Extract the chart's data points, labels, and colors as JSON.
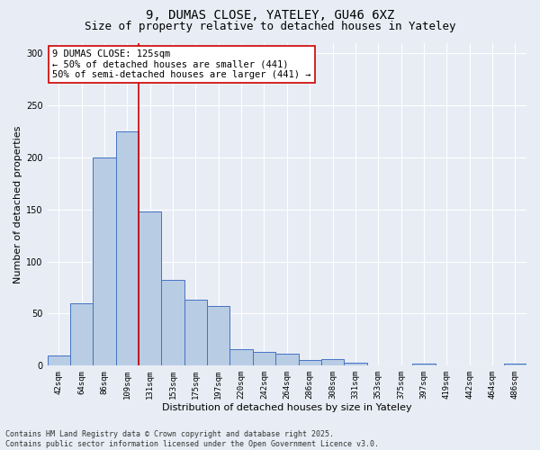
{
  "title_line1": "9, DUMAS CLOSE, YATELEY, GU46 6XZ",
  "title_line2": "Size of property relative to detached houses in Yateley",
  "xlabel": "Distribution of detached houses by size in Yateley",
  "ylabel": "Number of detached properties",
  "categories": [
    "42sqm",
    "64sqm",
    "86sqm",
    "109sqm",
    "131sqm",
    "153sqm",
    "175sqm",
    "197sqm",
    "220sqm",
    "242sqm",
    "264sqm",
    "286sqm",
    "308sqm",
    "331sqm",
    "353sqm",
    "375sqm",
    "397sqm",
    "419sqm",
    "442sqm",
    "464sqm",
    "486sqm"
  ],
  "values": [
    10,
    60,
    200,
    225,
    148,
    82,
    63,
    57,
    16,
    13,
    11,
    5,
    6,
    3,
    0,
    0,
    2,
    0,
    0,
    0,
    2
  ],
  "bar_color": "#b8cce4",
  "bar_edge_color": "#4472c4",
  "background_color": "#e8edf5",
  "grid_color": "#ffffff",
  "ylim": [
    0,
    310
  ],
  "yticks": [
    0,
    50,
    100,
    150,
    200,
    250,
    300
  ],
  "vline_x": 3.5,
  "vline_color": "#cc0000",
  "annotation_text": "9 DUMAS CLOSE: 125sqm\n← 50% of detached houses are smaller (441)\n50% of semi-detached houses are larger (441) →",
  "annotation_box_color": "#ffffff",
  "annotation_box_edge": "#cc0000",
  "footer_text": "Contains HM Land Registry data © Crown copyright and database right 2025.\nContains public sector information licensed under the Open Government Licence v3.0.",
  "title_fontsize": 10,
  "subtitle_fontsize": 9,
  "tick_fontsize": 6.5,
  "label_fontsize": 8,
  "annotation_fontsize": 7.5,
  "footer_fontsize": 6
}
